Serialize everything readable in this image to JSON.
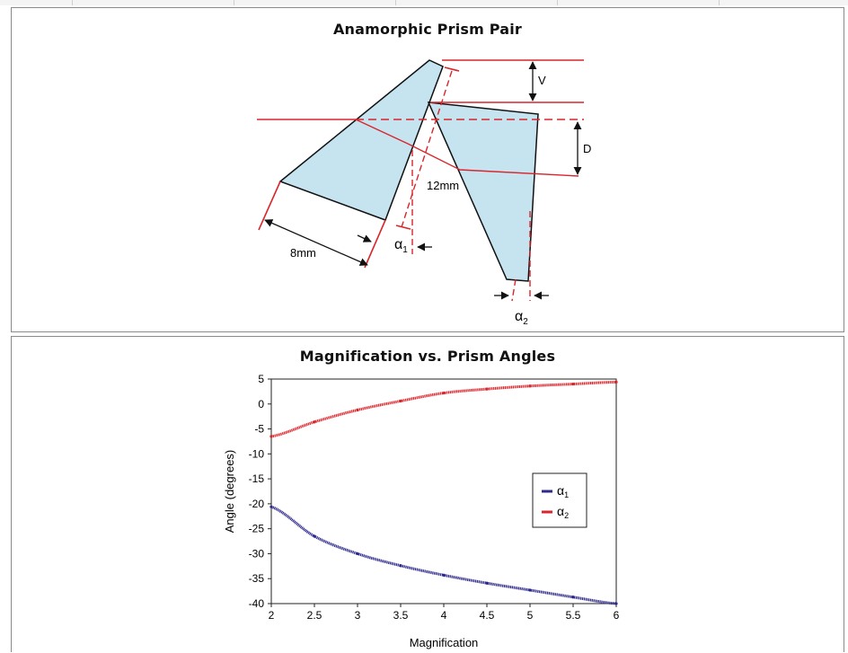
{
  "diagram": {
    "title": "Anamorphic Prism Pair",
    "labels": {
      "v": "V",
      "d": "D",
      "separation": "12mm",
      "prism_length": "8mm",
      "alpha1_base": "α",
      "alpha1_sub": "1",
      "alpha2_base": "α",
      "alpha2_sub": "2"
    },
    "colors": {
      "prism_fill": "#c6e3f0",
      "beam": "#d9252b",
      "outline": "#111111"
    }
  },
  "chart_data": {
    "type": "line",
    "title": "Magnification vs. Prism Angles",
    "xlabel": "Magnification",
    "ylabel": "Angle (degrees)",
    "xlim": [
      2,
      6
    ],
    "ylim": [
      -40,
      5
    ],
    "xticks": [
      "2",
      "2.5",
      "3",
      "3.5",
      "4",
      "4.5",
      "5",
      "5.5",
      "6"
    ],
    "yticks": [
      "5",
      "0",
      "-5",
      "-10",
      "-15",
      "-20",
      "-25",
      "-30",
      "-35",
      "-40"
    ],
    "legend_position": "right",
    "x": [
      2.0,
      2.5,
      3.0,
      3.5,
      4.0,
      4.5,
      5.0,
      5.5,
      6.0
    ],
    "series": [
      {
        "name_base": "α",
        "name_sub": "1",
        "color": "#2e2a8c",
        "values": [
          -20.6,
          -26.5,
          -30.0,
          -32.4,
          -34.3,
          -35.9,
          -37.3,
          -38.7,
          -40.0
        ]
      },
      {
        "name_base": "α",
        "name_sub": "2",
        "color": "#d9252b",
        "values": [
          -6.5,
          -3.6,
          -1.2,
          0.6,
          2.2,
          3.0,
          3.6,
          4.0,
          4.4
        ]
      }
    ]
  }
}
